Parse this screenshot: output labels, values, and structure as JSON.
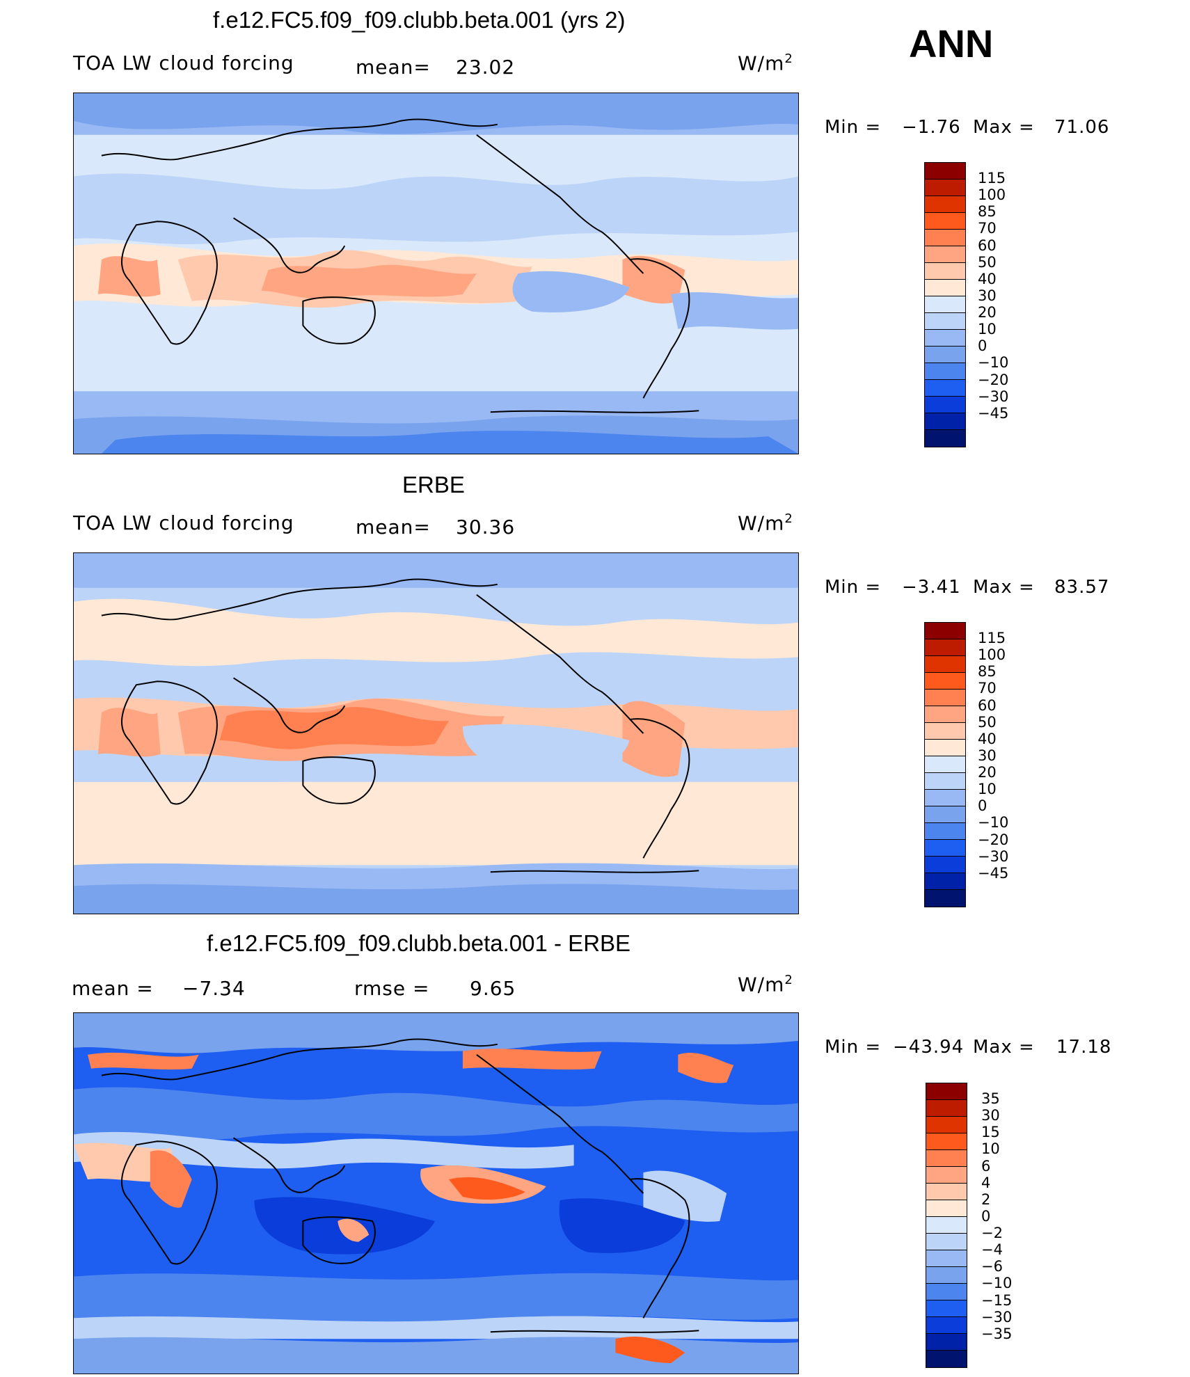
{
  "global": {
    "season": "ANN"
  },
  "panels": [
    {
      "title": "f.e12.FC5.f09_f09.clubb.beta.001 (yrs 2)",
      "left_label": "TOA LW cloud forcing",
      "mid_label": "mean=",
      "mid_value": "23.02",
      "units_base": "W/m",
      "units_exp": "2",
      "min_label": "Min =",
      "min_value": "−1.76",
      "max_label": "Max =",
      "max_value": "71.06",
      "levels": [
        "115",
        "100",
        "85",
        "70",
        "60",
        "50",
        "40",
        "30",
        "20",
        "10",
        "0",
        "−10",
        "−20",
        "−30",
        "−45"
      ],
      "colors": [
        "#8c0000",
        "#bd1c00",
        "#e03400",
        "#ff5a1e",
        "#ff8050",
        "#ffa582",
        "#ffc9ad",
        "#ffe8d6",
        "#d9e9fb",
        "#bcd4f7",
        "#98b9f3",
        "#7aa3ee",
        "#4d85ee",
        "#1e5ef0",
        "#0a3dd9",
        "#0022a8",
        "#00136e"
      ],
      "mean_hint": 23.02
    },
    {
      "title": "ERBE",
      "left_label": "TOA LW cloud forcing",
      "mid_label": "mean=",
      "mid_value": "30.36",
      "units_base": "W/m",
      "units_exp": "2",
      "min_label": "Min =",
      "min_value": "−3.41",
      "max_label": "Max =",
      "max_value": "83.57",
      "levels": [
        "115",
        "100",
        "85",
        "70",
        "60",
        "50",
        "40",
        "30",
        "20",
        "10",
        "0",
        "−10",
        "−20",
        "−30",
        "−45"
      ],
      "colors": [
        "#8c0000",
        "#bd1c00",
        "#e03400",
        "#ff5a1e",
        "#ff8050",
        "#ffa582",
        "#ffc9ad",
        "#ffe8d6",
        "#d9e9fb",
        "#bcd4f7",
        "#98b9f3",
        "#7aa3ee",
        "#4d85ee",
        "#1e5ef0",
        "#0a3dd9",
        "#0022a8",
        "#00136e"
      ],
      "mean_hint": 30.36
    },
    {
      "title": "f.e12.FC5.f09_f09.clubb.beta.001 - ERBE",
      "left_label": "mean =",
      "left_value": "−7.34",
      "mid_label": "rmse =",
      "mid_value": "9.65",
      "units_base": "W/m",
      "units_exp": "2",
      "min_label": "Min =",
      "min_value": "−43.94",
      "max_label": "Max =",
      "max_value": "17.18",
      "levels": [
        "35",
        "30",
        "15",
        "10",
        "6",
        "4",
        "2",
        "0",
        "−2",
        "−4",
        "−6",
        "−10",
        "−15",
        "−30",
        "−35"
      ],
      "colors": [
        "#8c0000",
        "#bd1c00",
        "#e03400",
        "#ff5a1e",
        "#ff8050",
        "#ffa582",
        "#ffc9ad",
        "#ffe8d6",
        "#d9e9fb",
        "#bcd4f7",
        "#98b9f3",
        "#7aa3ee",
        "#4d85ee",
        "#1e5ef0",
        "#0a3dd9",
        "#0022a8",
        "#00136e"
      ],
      "mean_hint": -7.34
    }
  ]
}
